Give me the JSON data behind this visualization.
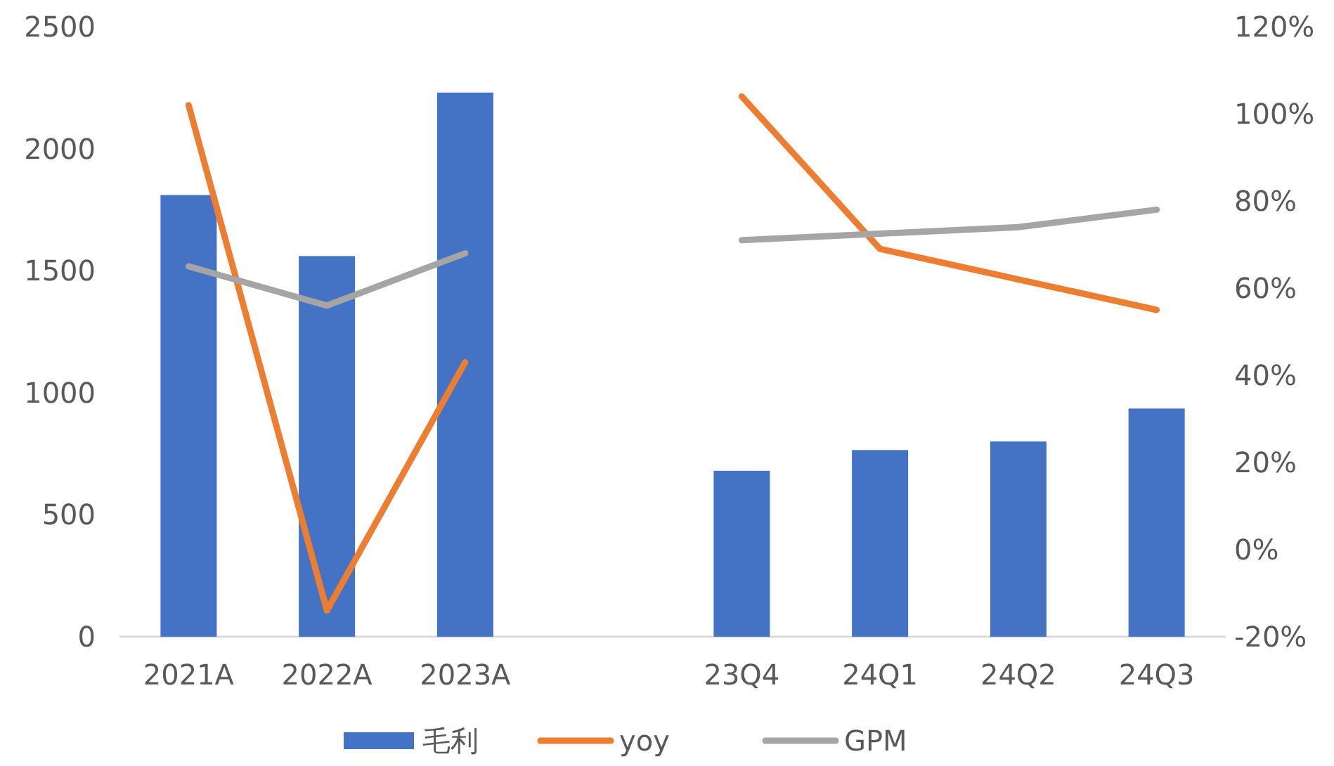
{
  "chart_data": {
    "type": "bar",
    "categories": [
      "2021A",
      "2022A",
      "2023A",
      null,
      "23Q4",
      "24Q1",
      "24Q2",
      "24Q3"
    ],
    "series": [
      {
        "name": "毛利",
        "color": "#4472c4",
        "values": [
          1810,
          1560,
          2230,
          null,
          680,
          765,
          800,
          935
        ]
      },
      {
        "name": "yoy",
        "type": "line",
        "axis": "y2",
        "color": "#ed7d31",
        "values": [
          102,
          -14,
          43,
          null,
          104,
          69,
          62,
          55
        ]
      },
      {
        "name": "GPM",
        "type": "line",
        "axis": "y2",
        "color": "#a5a5a5",
        "values": [
          65,
          56,
          68,
          null,
          71,
          72.5,
          74,
          78
        ]
      }
    ],
    "ylim": [
      0,
      2500
    ],
    "yticks": [
      0,
      500,
      1000,
      1500,
      2000,
      2500
    ],
    "y2lim": [
      -20,
      120
    ],
    "y2ticks": [
      {
        "value": -20,
        "label": "-20%"
      },
      {
        "value": 0,
        "label": "0%"
      },
      {
        "value": 20,
        "label": "20%"
      },
      {
        "value": 40,
        "label": "40%"
      },
      {
        "value": 60,
        "label": "60%"
      },
      {
        "value": 80,
        "label": "80%"
      },
      {
        "value": 100,
        "label": "100%"
      },
      {
        "value": 120,
        "label": "120%"
      }
    ],
    "grid": false,
    "legend": "bottom"
  }
}
